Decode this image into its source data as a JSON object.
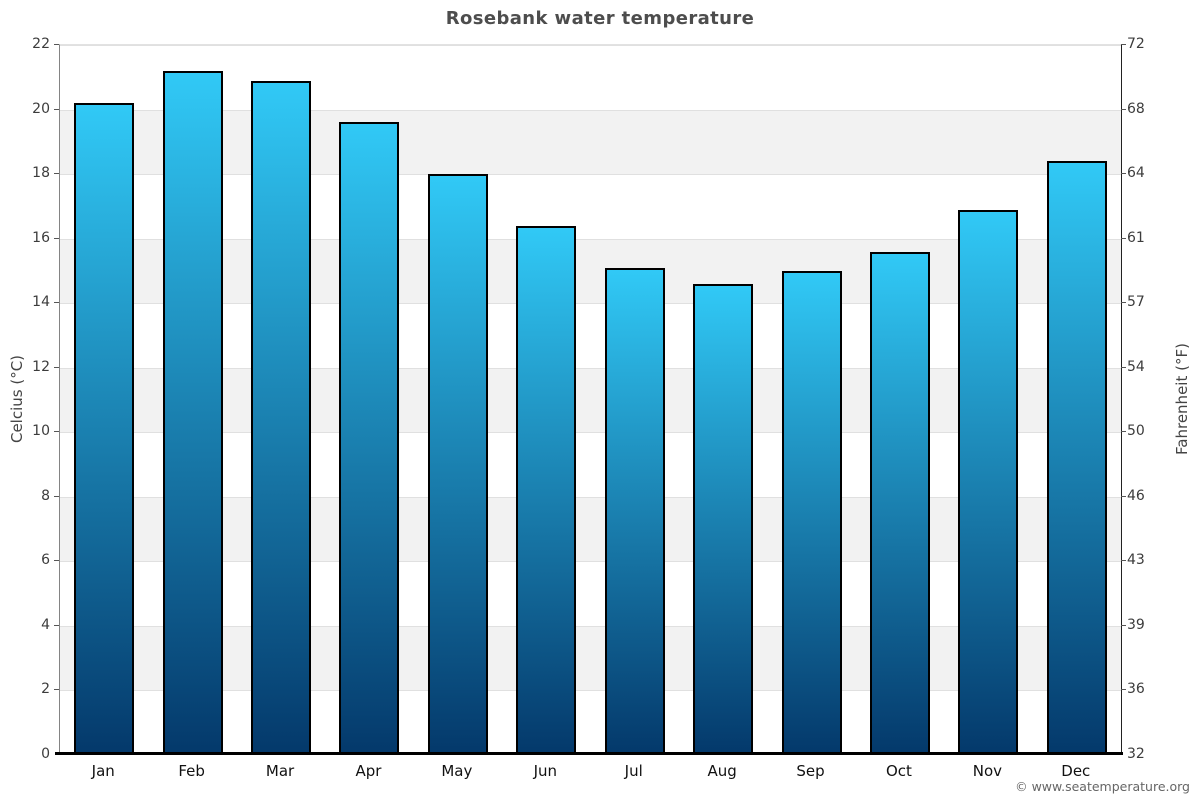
{
  "title": "Rosebank water temperature",
  "footer": {
    "credit": "© www.seatemperature.org"
  },
  "chart_data": {
    "type": "bar",
    "title": "Rosebank water temperature",
    "categories": [
      "Jan",
      "Feb",
      "Mar",
      "Apr",
      "May",
      "Jun",
      "Jul",
      "Aug",
      "Sep",
      "Oct",
      "Nov",
      "Dec"
    ],
    "values": [
      20.2,
      21.2,
      20.9,
      19.6,
      18.0,
      16.4,
      15.1,
      14.6,
      15.0,
      15.6,
      16.9,
      18.4
    ],
    "value_unit": "°C",
    "xlabel": "",
    "ylabel_left": "Celcius (°C)",
    "ylabel_right": "Fahrenheit (°F)",
    "ylim": [
      0,
      22
    ],
    "yticks_celsius": [
      0,
      2,
      4,
      6,
      8,
      10,
      12,
      14,
      16,
      18,
      20,
      22
    ],
    "yticks_fahrenheit": [
      32,
      36,
      39,
      43,
      46,
      50,
      54,
      57,
      61,
      64,
      68,
      72
    ],
    "grid": "alternating horizontal bands with light gridlines",
    "legend": "none",
    "colors": {
      "bar_gradient_top": "#31c9f6",
      "bar_gradient_bottom": "#04396b",
      "bar_border": "#000000",
      "band_shade": "#f2f2f2",
      "band_light": "#ffffff",
      "gridline": "#e0e0e0",
      "title_text": "#4d4d4d",
      "tick_text": "#3c3c3c",
      "axis_label_text": "#444444",
      "x_axis_line": "#000000"
    }
  }
}
